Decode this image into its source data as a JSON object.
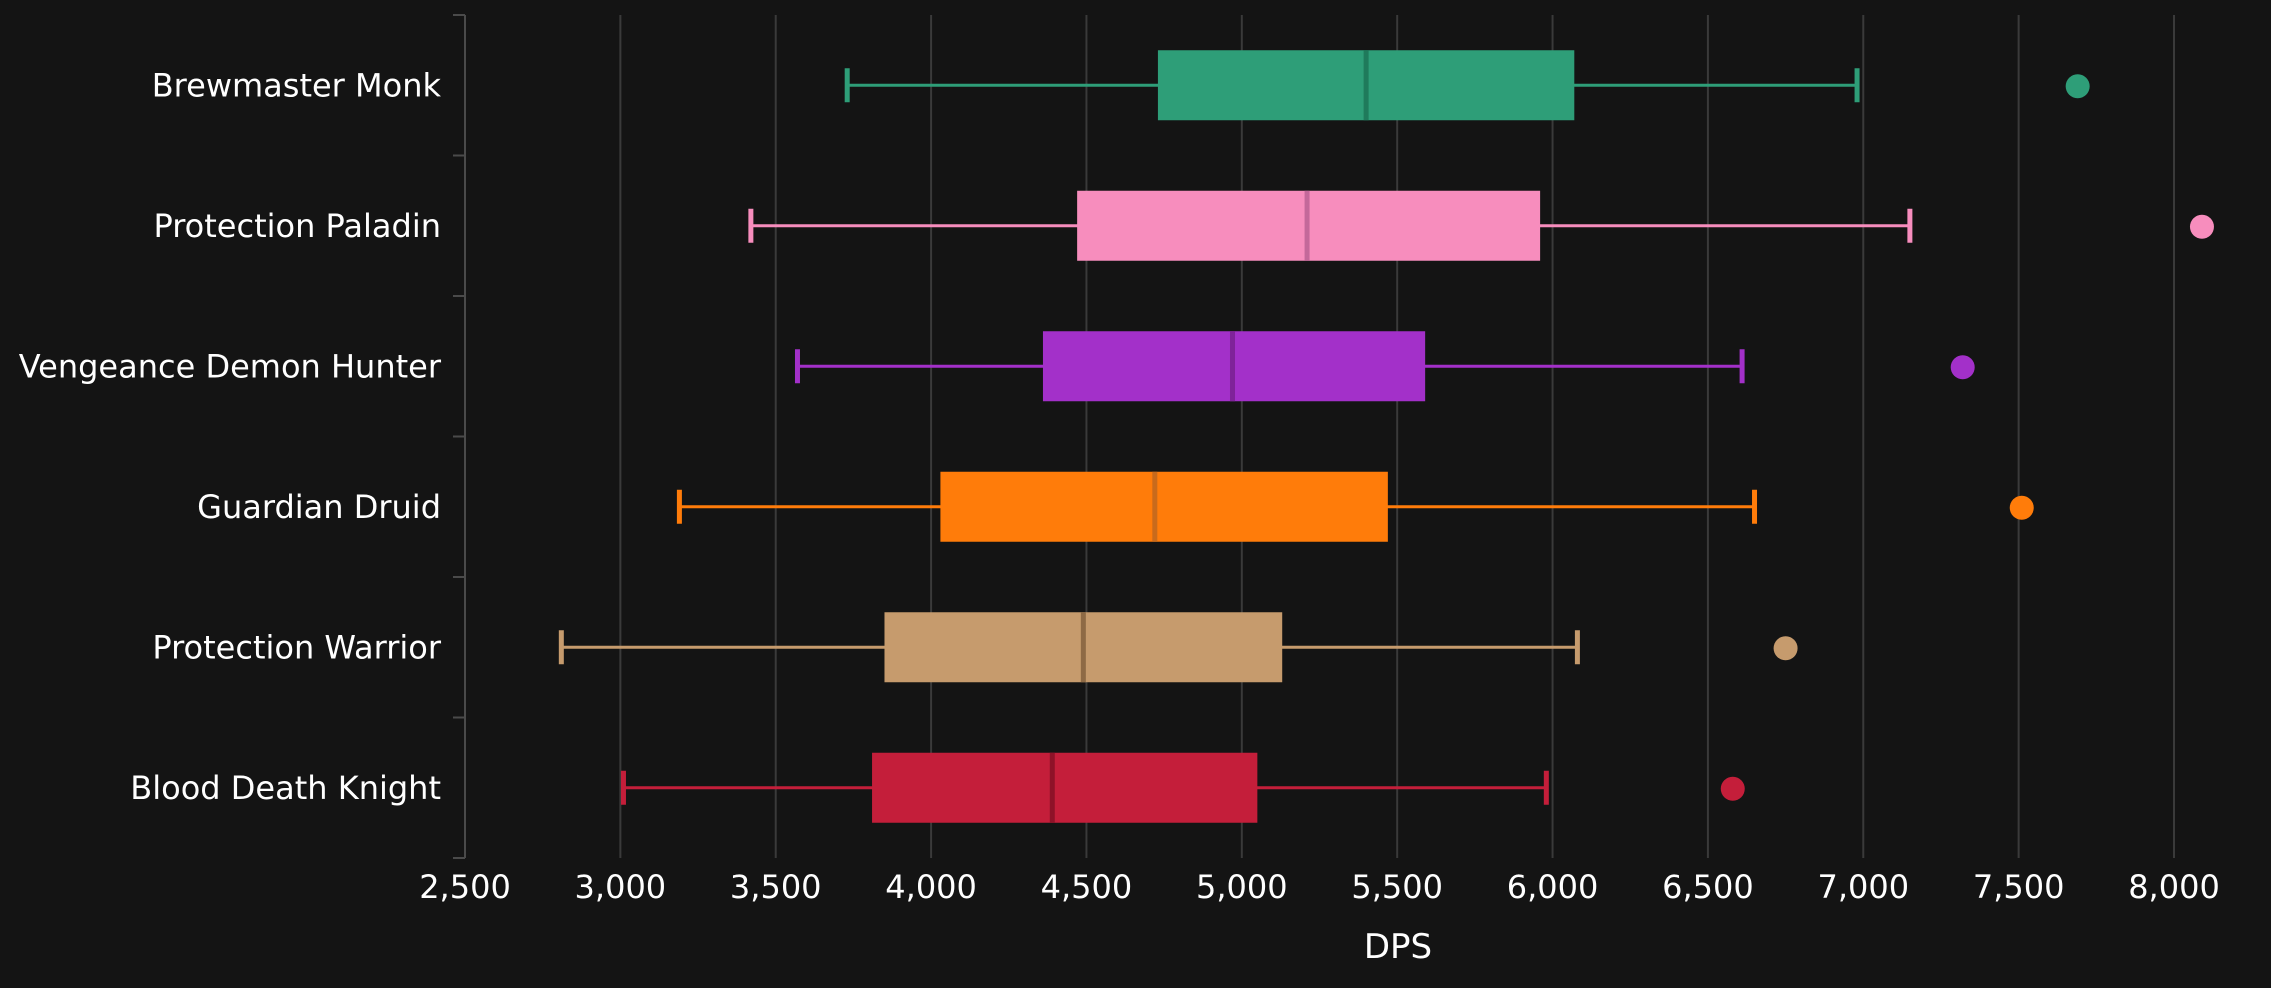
{
  "chart_data": {
    "type": "boxplot",
    "orientation": "horizontal",
    "xlabel": "DPS",
    "xlim": [
      2500,
      8000
    ],
    "xticks": [
      2500,
      3000,
      3500,
      4000,
      4500,
      5000,
      5500,
      6000,
      6500,
      7000,
      7500,
      8000
    ],
    "xtick_labels": [
      "2,500",
      "3,000",
      "3,500",
      "4,000",
      "4,500",
      "5,000",
      "5,500",
      "6,000",
      "6,500",
      "7,000",
      "7,500",
      "8,000"
    ],
    "grid": "vertical",
    "series": [
      {
        "name": "Brewmaster Monk",
        "color": "#2e9e78",
        "median_color": "#1f7a5b",
        "min": 3730,
        "q1": 4730,
        "median": 5400,
        "q3": 6070,
        "max": 6980,
        "outliers": [
          7690
        ]
      },
      {
        "name": "Protection Paladin",
        "color": "#f78dbd",
        "median_color": "#c4689a",
        "min": 3420,
        "q1": 4470,
        "median": 5210,
        "q3": 5960,
        "max": 7150,
        "outliers": [
          8090
        ]
      },
      {
        "name": "Vengeance Demon Hunter",
        "color": "#a330c9",
        "median_color": "#7f2399",
        "min": 3570,
        "q1": 4360,
        "median": 4970,
        "q3": 5590,
        "max": 6610,
        "outliers": [
          7320
        ]
      },
      {
        "name": "Guardian Druid",
        "color": "#ff7c0a",
        "median_color": "#c86a1c",
        "min": 3190,
        "q1": 4030,
        "median": 4720,
        "q3": 5470,
        "max": 6650,
        "outliers": [
          7510
        ]
      },
      {
        "name": "Protection Warrior",
        "color": "#c69b6d",
        "median_color": "#8e6a45",
        "min": 2810,
        "q1": 3850,
        "median": 4490,
        "q3": 5130,
        "max": 6080,
        "outliers": [
          6750
        ]
      },
      {
        "name": "Blood Death Knight",
        "color": "#c41e3a",
        "median_color": "#8e1228",
        "min": 3010,
        "q1": 3810,
        "median": 4390,
        "q3": 5050,
        "max": 5980,
        "outliers": [
          6580
        ]
      }
    ]
  }
}
